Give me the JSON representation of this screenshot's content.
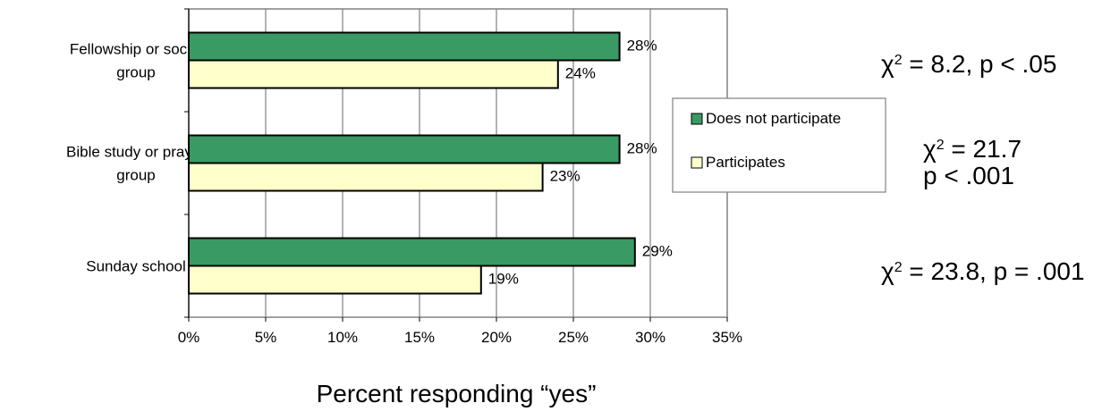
{
  "colors": {
    "does_not_participate": "#3a9a64",
    "participates": "#ffffcc",
    "gridline": "#808080",
    "bar_stroke": "#000000"
  },
  "chart_data": {
    "type": "bar",
    "orientation": "horizontal",
    "categories": [
      "Fellowship or social group",
      "Bible study or prayer group",
      "Sunday school"
    ],
    "series": [
      {
        "name": "Does not participate",
        "values": [
          28,
          28,
          29
        ]
      },
      {
        "name": "Participates",
        "values": [
          24,
          23,
          19
        ]
      }
    ],
    "data_labels": {
      "Does not participate": [
        "28%",
        "28%",
        "29%"
      ],
      "Participates": [
        "24%",
        "23%",
        "19%"
      ]
    },
    "x_ticks": [
      "0%",
      "5%",
      "10%",
      "15%",
      "20%",
      "25%",
      "30%",
      "35%"
    ],
    "xlim": [
      0,
      35
    ],
    "xlabel": "Percent responding “yes”",
    "grid": true,
    "legend_placement": "right"
  },
  "annotations": {
    "fellowship_chi": "χ",
    "fellowship_sup": "2",
    "fellowship_rest": " = 8.2, p < .05",
    "bible_chi": "χ",
    "bible_sup": "2",
    "bible_line1_rest": " = 21.7",
    "bible_line2": "p < .001",
    "sunday_chi": "χ",
    "sunday_sup": "2",
    "sunday_rest": " = 23.8, p = .001"
  }
}
